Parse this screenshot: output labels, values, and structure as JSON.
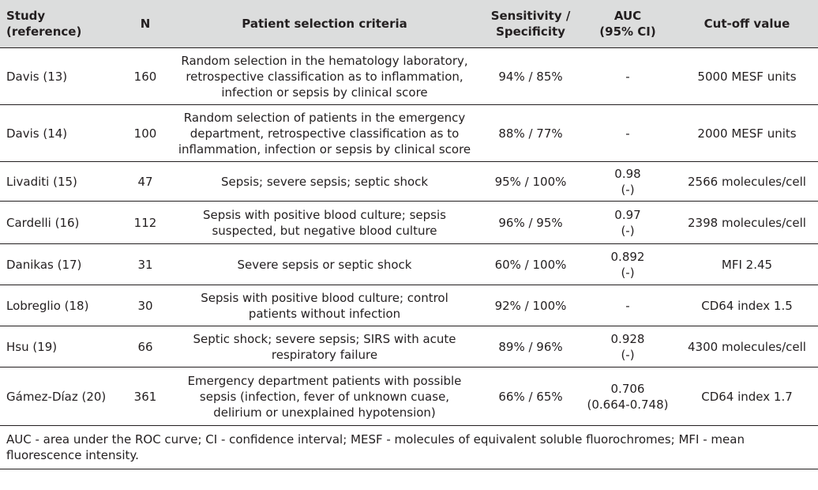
{
  "table": {
    "headers": {
      "study": "Study\n(reference)",
      "n": "N",
      "criteria": "Patient selection criteria",
      "sens_spec": "Sensitivity /\nSpecificity",
      "auc": "AUC\n(95% CI)",
      "cutoff": "Cut-off value"
    },
    "rows": [
      {
        "study": "Davis (13)",
        "n": "160",
        "criteria": "Random selection in the hematology laboratory,\nretrospective classification as to inflammation,\ninfection or sepsis by clinical score",
        "sens_spec": "94% / 85%",
        "auc": "-",
        "cutoff": "5000 MESF units"
      },
      {
        "study": "Davis (14)",
        "n": "100",
        "criteria": "Random selection of patients in the emergency\ndepartment, retrospective classification as to\ninflammation, infection or sepsis by clinical score",
        "sens_spec": "88% / 77%",
        "auc": "-",
        "cutoff": "2000 MESF units"
      },
      {
        "study": "Livaditi (15)",
        "n": "47",
        "criteria": "Sepsis; severe sepsis; septic shock",
        "sens_spec": "95% / 100%",
        "auc": "0.98\n(-)",
        "cutoff": "2566 molecules/cell"
      },
      {
        "study": "Cardelli (16)",
        "n": "112",
        "criteria": "Sepsis with positive blood culture; sepsis\nsuspected, but negative blood culture",
        "sens_spec": "96% / 95%",
        "auc": "0.97\n(-)",
        "cutoff": "2398 molecules/cell"
      },
      {
        "study": "Danikas (17)",
        "n": "31",
        "criteria": "Severe sepsis or septic shock",
        "sens_spec": "60% / 100%",
        "auc": "0.892\n(-)",
        "cutoff": "MFI 2.45"
      },
      {
        "study": "Lobreglio (18)",
        "n": "30",
        "criteria": "Sepsis with positive blood culture; control\npatients without infection",
        "sens_spec": "92% / 100%",
        "auc": "-",
        "cutoff": "CD64 index 1.5"
      },
      {
        "study": "Hsu (19)",
        "n": "66",
        "criteria": "Septic shock; severe sepsis; SIRS with acute\nrespiratory failure",
        "sens_spec": "89% / 96%",
        "auc": "0.928\n(-)",
        "cutoff": "4300 molecules/cell"
      },
      {
        "study": "Gámez-Díaz (20)",
        "n": "361",
        "criteria": "Emergency department patients with possible\nsepsis (infection, fever of unknown cuase,\ndelirium or unexplained hypotension)",
        "sens_spec": "66% / 65%",
        "auc": "0.706\n(0.664-0.748)",
        "cutoff": "CD64 index 1.7"
      }
    ],
    "footnote": "AUC - area under the ROC curve; CI - confidence interval; MESF - molecules of equivalent soluble fluorochromes; MFI - mean fluorescence intensity."
  }
}
